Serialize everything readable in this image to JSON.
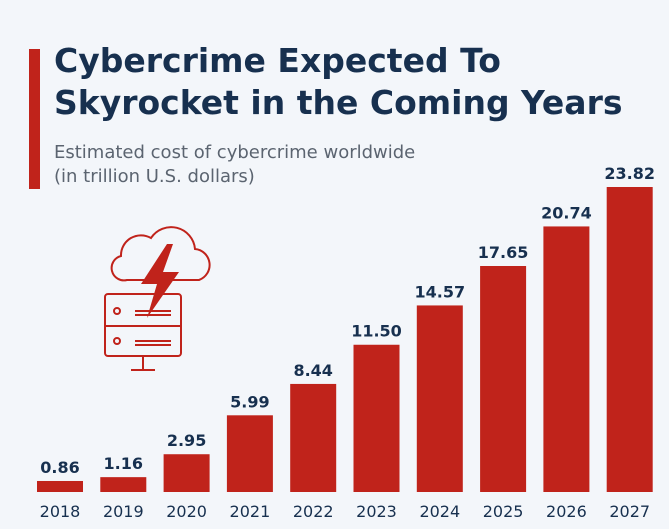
{
  "header": {
    "title_line1": "Cybercrime Expected To",
    "title_line2": "Skyrocket in the Coming Years",
    "subtitle_line1": "Estimated cost of cybercrime worldwide",
    "subtitle_line2": "(in trillion U.S. dollars)"
  },
  "illustration": {
    "icon": "cloud-lightning-server-icon",
    "color": "#c0231b"
  },
  "colors": {
    "bar": "#c0231b",
    "title": "#17304f",
    "label": "#17304f",
    "background": "#f3f6fa"
  },
  "chart_data": {
    "type": "bar",
    "title": "Cybercrime Expected To Skyrocket in the Coming Years",
    "subtitle": "Estimated cost of cybercrime worldwide (in trillion U.S. dollars)",
    "categories": [
      "2018",
      "2019",
      "2020",
      "2021",
      "2022",
      "2023",
      "2024",
      "2025",
      "2026",
      "2027"
    ],
    "values": [
      0.86,
      1.16,
      2.95,
      5.99,
      8.44,
      11.5,
      14.57,
      17.65,
      20.74,
      23.82
    ],
    "value_labels": [
      "0.86",
      "1.16",
      "2.95",
      "5.99",
      "8.44",
      "11.50",
      "14.57",
      "17.65",
      "20.74",
      "23.82"
    ],
    "xlabel": "",
    "ylabel": "",
    "ylim": [
      0,
      23.82
    ],
    "grid": false,
    "legend": "none"
  }
}
